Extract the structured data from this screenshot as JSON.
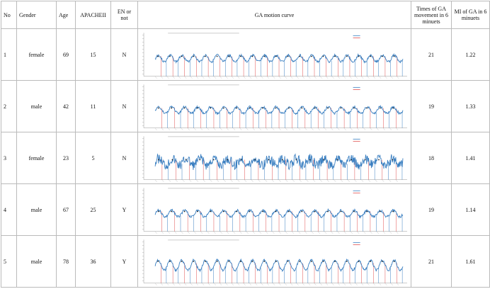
{
  "headers": {
    "no": "No",
    "gender": "Gender",
    "age": "Age",
    "apache": "APACHEII",
    "en": "EN or not",
    "curve": "GA motion curve",
    "times": "Times of GA movement in 6 minuets",
    "mi": "MI of GA in 6 minuets"
  },
  "rows": [
    {
      "no": "1",
      "gender": "female",
      "age": "69",
      "apache": "15",
      "en": "N",
      "times": "21",
      "mi": "1.22"
    },
    {
      "no": "2",
      "gender": "male",
      "age": "42",
      "apache": "11",
      "en": "N",
      "times": "19",
      "mi": "1.33"
    },
    {
      "no": "3",
      "gender": "female",
      "age": "23",
      "apache": "5",
      "en": "N",
      "times": "18",
      "mi": "1.41"
    },
    {
      "no": "4",
      "gender": "male",
      "age": "67",
      "apache": "25",
      "en": "Y",
      "times": "19",
      "mi": "1.14"
    },
    {
      "no": "5",
      "gender": "male",
      "age": "78",
      "apache": "36",
      "en": "Y",
      "times": "21",
      "mi": "1.61"
    }
  ],
  "colors": {
    "curve": "#3a7fc1",
    "peak_line": "#e05050",
    "trough_line": "#3a7fc1",
    "marker": "#222222"
  }
}
